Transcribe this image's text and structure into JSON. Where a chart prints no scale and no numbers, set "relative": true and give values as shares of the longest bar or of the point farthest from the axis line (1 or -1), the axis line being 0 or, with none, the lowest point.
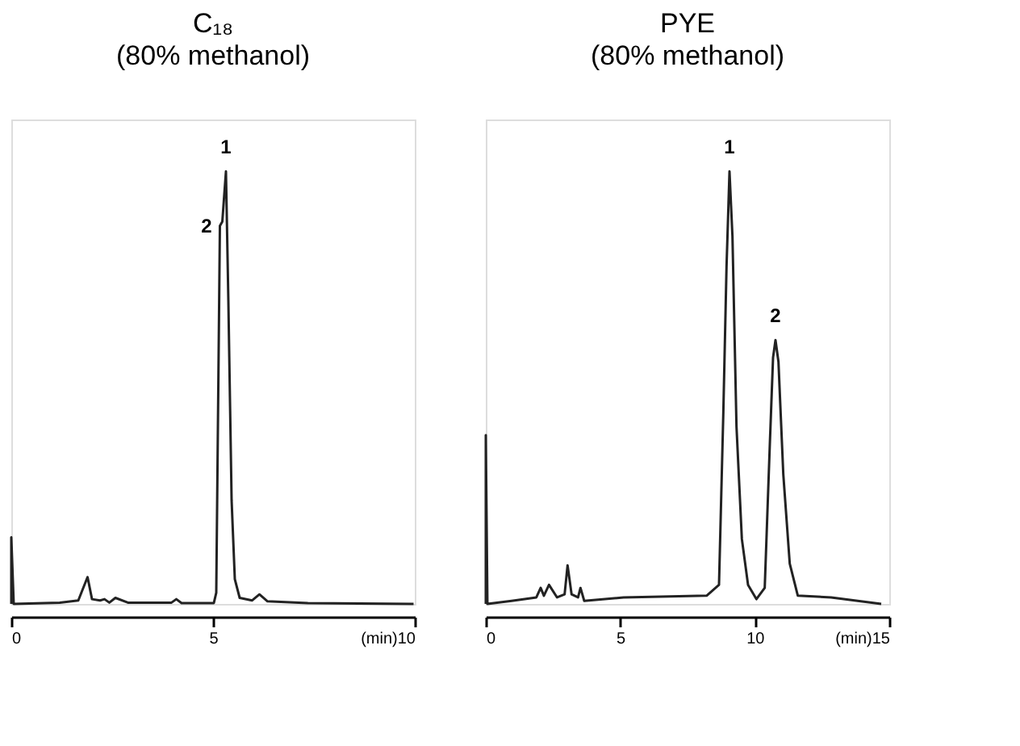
{
  "chart_data": [
    {
      "type": "line",
      "title": "C₁₈",
      "subtitle": "(80% methanol)",
      "relative": true,
      "tick_labels": "x",
      "xlim": [
        0,
        10
      ],
      "xticks": [
        0,
        5,
        {
          "value": 10,
          "label": "(min)10"
        }
      ],
      "series": [
        {
          "color": "#222222",
          "x": [
            0,
            0,
            0.06,
            1.2,
            1.66,
            1.89,
            2.0,
            2.2,
            2.31,
            2.43,
            2.58,
            2.89,
            3.97,
            4.09,
            4.22,
            5.02,
            5.08,
            5.17,
            5.23,
            5.32,
            5.38,
            5.46,
            5.54,
            5.66,
            5.97,
            6.15,
            6.35,
            7.35,
            9.97
          ],
          "values": [
            0,
            0.154,
            0,
            0.003,
            0.008,
            0.062,
            0.011,
            0.008,
            0.011,
            0.003,
            0.014,
            0.003,
            0.003,
            0.011,
            0.002,
            0.002,
            0.026,
            0.874,
            0.884,
            1.0,
            0.7,
            0.24,
            0.057,
            0.014,
            0.008,
            0.022,
            0.006,
            0.002,
            0
          ]
        }
      ],
      "annotations": [
        {
          "text": "1",
          "x": 5.32,
          "y": 1.0
        },
        {
          "text": "2",
          "x": 5.17,
          "y": 0.874
        }
      ]
    },
    {
      "type": "line",
      "title": "PYE",
      "subtitle": "(80% methanol)",
      "relative": true,
      "tick_labels": "x",
      "xlim": [
        0,
        15
      ],
      "xticks": [
        0,
        5,
        10,
        {
          "value": 15,
          "label": "(min)15"
        }
      ],
      "series": [
        {
          "color": "#222222",
          "x": [
            0,
            0,
            0.06,
            0.96,
            1.88,
            2.04,
            2.16,
            2.35,
            2.65,
            2.93,
            3.04,
            3.19,
            3.43,
            3.52,
            3.66,
            5.12,
            8.21,
            8.67,
            8.83,
            8.95,
            9.06,
            9.17,
            9.32,
            9.52,
            9.75,
            10.06,
            10.37,
            10.56,
            10.68,
            10.77,
            10.88,
            11.06,
            11.3,
            11.6,
            12.84,
            14.7
          ],
          "values": [
            0,
            0.39,
            0,
            0.007,
            0.015,
            0.037,
            0.019,
            0.044,
            0.015,
            0.022,
            0.089,
            0.022,
            0.015,
            0.037,
            0.007,
            0.015,
            0.019,
            0.044,
            0.44,
            0.78,
            1.0,
            0.85,
            0.41,
            0.15,
            0.044,
            0.011,
            0.037,
            0.37,
            0.57,
            0.61,
            0.56,
            0.3,
            0.093,
            0.019,
            0.015,
            0
          ]
        }
      ],
      "annotations": [
        {
          "text": "1",
          "x": 9.06,
          "y": 1.0
        },
        {
          "text": "2",
          "x": 10.77,
          "y": 0.61
        }
      ]
    }
  ]
}
